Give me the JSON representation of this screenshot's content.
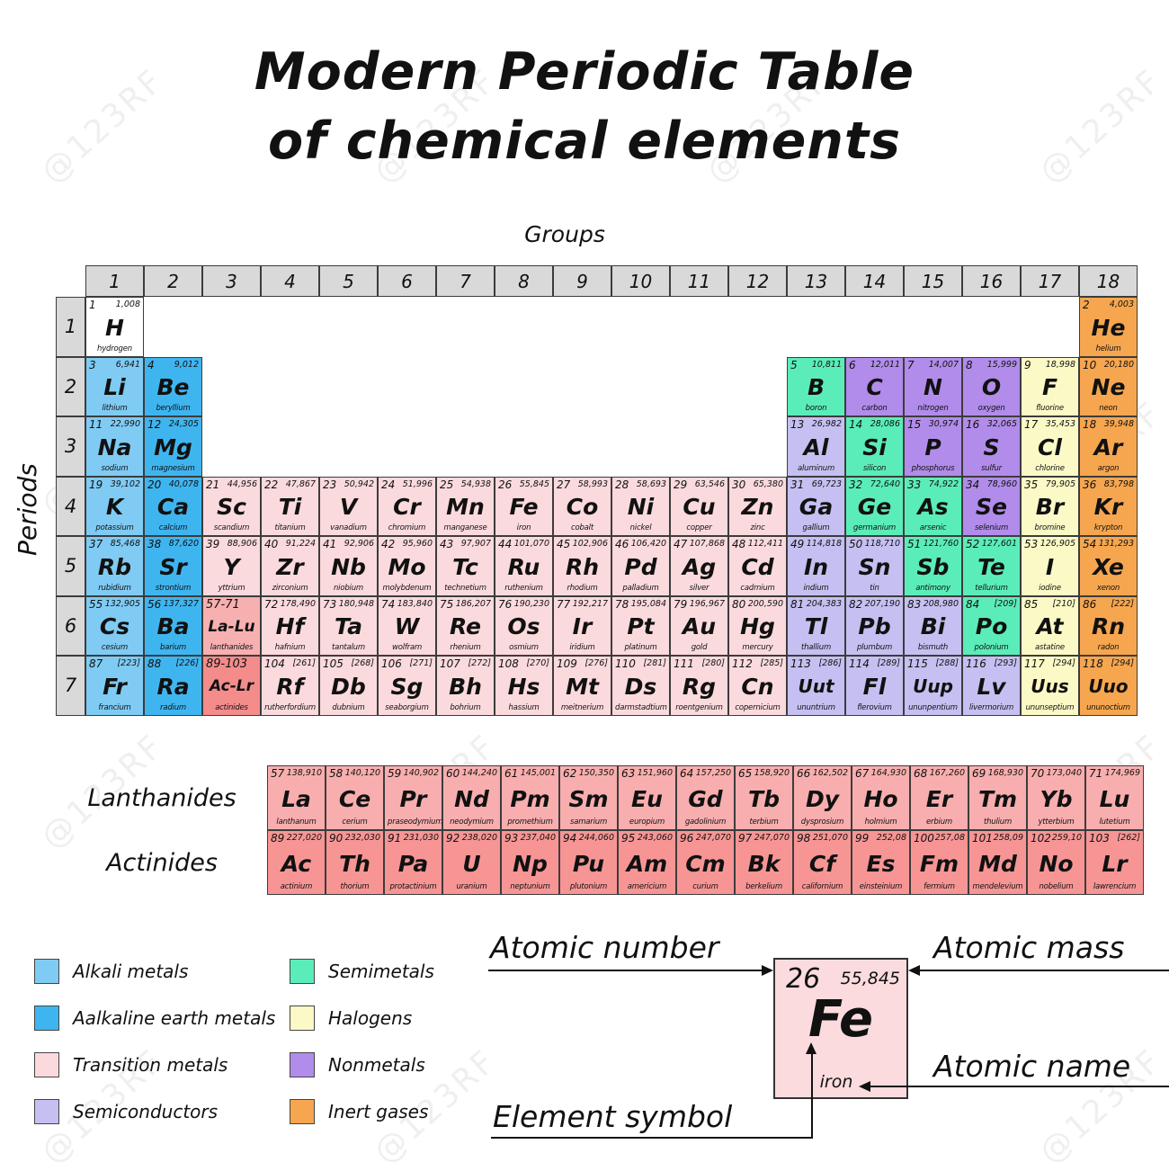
{
  "title": {
    "line1": "Modern Periodic Table",
    "line2": "of chemical elements"
  },
  "axis": {
    "groups_label": "Groups",
    "periods_label": "Periods"
  },
  "group_numbers": [
    "1",
    "2",
    "3",
    "4",
    "5",
    "6",
    "7",
    "8",
    "9",
    "10",
    "11",
    "12",
    "13",
    "14",
    "15",
    "16",
    "17",
    "18"
  ],
  "period_numbers": [
    "1",
    "2",
    "3",
    "4",
    "5",
    "6",
    "7"
  ],
  "colors": {
    "none": "#FFFFFF",
    "alkali": "#7FCBF4",
    "alkaline": "#3FB5F0",
    "transition": "#FBDADD",
    "semiconductor": "#C5C0F1",
    "semimetal": "#5BEDB9",
    "halogen": "#FBFAC6",
    "nonmetal": "#B18CEA",
    "inert": "#F6A64F",
    "lanthanide": "#F8AEAE",
    "actinide": "#F79595",
    "lanthanide_block": "#F7B0B0",
    "actinide_block": "#F48C8C",
    "header": "#D9D9D9"
  },
  "elements": [
    {
      "n": "1",
      "m": "1,008",
      "s": "H",
      "nm": "hydrogen",
      "c": "none",
      "p": 1,
      "g": 1
    },
    {
      "n": "2",
      "m": "4,003",
      "s": "He",
      "nm": "helium",
      "c": "inert",
      "p": 1,
      "g": 18
    },
    {
      "n": "3",
      "m": "6,941",
      "s": "Li",
      "nm": "lithium",
      "c": "alkali",
      "p": 2,
      "g": 1
    },
    {
      "n": "4",
      "m": "9,012",
      "s": "Be",
      "nm": "beryllium",
      "c": "alkaline",
      "p": 2,
      "g": 2
    },
    {
      "n": "5",
      "m": "10,811",
      "s": "B",
      "nm": "boron",
      "c": "semimetal",
      "p": 2,
      "g": 13
    },
    {
      "n": "6",
      "m": "12,011",
      "s": "C",
      "nm": "carbon",
      "c": "nonmetal",
      "p": 2,
      "g": 14
    },
    {
      "n": "7",
      "m": "14,007",
      "s": "N",
      "nm": "nitrogen",
      "c": "nonmetal",
      "p": 2,
      "g": 15
    },
    {
      "n": "8",
      "m": "15,999",
      "s": "O",
      "nm": "oxygen",
      "c": "nonmetal",
      "p": 2,
      "g": 16
    },
    {
      "n": "9",
      "m": "18,998",
      "s": "F",
      "nm": "fluorine",
      "c": "halogen",
      "p": 2,
      "g": 17
    },
    {
      "n": "10",
      "m": "20,180",
      "s": "Ne",
      "nm": "neon",
      "c": "inert",
      "p": 2,
      "g": 18
    },
    {
      "n": "11",
      "m": "22,990",
      "s": "Na",
      "nm": "sodium",
      "c": "alkali",
      "p": 3,
      "g": 1
    },
    {
      "n": "12",
      "m": "24,305",
      "s": "Mg",
      "nm": "magnesium",
      "c": "alkaline",
      "p": 3,
      "g": 2
    },
    {
      "n": "13",
      "m": "26,982",
      "s": "Al",
      "nm": "aluminum",
      "c": "semiconductor",
      "p": 3,
      "g": 13
    },
    {
      "n": "14",
      "m": "28,086",
      "s": "Si",
      "nm": "silicon",
      "c": "semimetal",
      "p": 3,
      "g": 14
    },
    {
      "n": "15",
      "m": "30,974",
      "s": "P",
      "nm": "phosphorus",
      "c": "nonmetal",
      "p": 3,
      "g": 15
    },
    {
      "n": "16",
      "m": "32,065",
      "s": "S",
      "nm": "sulfur",
      "c": "nonmetal",
      "p": 3,
      "g": 16
    },
    {
      "n": "17",
      "m": "35,453",
      "s": "Cl",
      "nm": "chlorine",
      "c": "halogen",
      "p": 3,
      "g": 17
    },
    {
      "n": "18",
      "m": "39,948",
      "s": "Ar",
      "nm": "argon",
      "c": "inert",
      "p": 3,
      "g": 18
    },
    {
      "n": "19",
      "m": "39,102",
      "s": "K",
      "nm": "potassium",
      "c": "alkali",
      "p": 4,
      "g": 1
    },
    {
      "n": "20",
      "m": "40,078",
      "s": "Ca",
      "nm": "calcium",
      "c": "alkaline",
      "p": 4,
      "g": 2
    },
    {
      "n": "21",
      "m": "44,956",
      "s": "Sc",
      "nm": "scandium",
      "c": "transition",
      "p": 4,
      "g": 3
    },
    {
      "n": "22",
      "m": "47,867",
      "s": "Ti",
      "nm": "titanium",
      "c": "transition",
      "p": 4,
      "g": 4
    },
    {
      "n": "23",
      "m": "50,942",
      "s": "V",
      "nm": "vanadium",
      "c": "transition",
      "p": 4,
      "g": 5
    },
    {
      "n": "24",
      "m": "51,996",
      "s": "Cr",
      "nm": "chromium",
      "c": "transition",
      "p": 4,
      "g": 6
    },
    {
      "n": "25",
      "m": "54,938",
      "s": "Mn",
      "nm": "manganese",
      "c": "transition",
      "p": 4,
      "g": 7
    },
    {
      "n": "26",
      "m": "55,845",
      "s": "Fe",
      "nm": "iron",
      "c": "transition",
      "p": 4,
      "g": 8
    },
    {
      "n": "27",
      "m": "58,993",
      "s": "Co",
      "nm": "cobalt",
      "c": "transition",
      "p": 4,
      "g": 9
    },
    {
      "n": "28",
      "m": "58,693",
      "s": "Ni",
      "nm": "nickel",
      "c": "transition",
      "p": 4,
      "g": 10
    },
    {
      "n": "29",
      "m": "63,546",
      "s": "Cu",
      "nm": "copper",
      "c": "transition",
      "p": 4,
      "g": 11
    },
    {
      "n": "30",
      "m": "65,380",
      "s": "Zn",
      "nm": "zinc",
      "c": "transition",
      "p": 4,
      "g": 12
    },
    {
      "n": "31",
      "m": "69,723",
      "s": "Ga",
      "nm": "gallium",
      "c": "semiconductor",
      "p": 4,
      "g": 13
    },
    {
      "n": "32",
      "m": "72,640",
      "s": "Ge",
      "nm": "germanium",
      "c": "semimetal",
      "p": 4,
      "g": 14
    },
    {
      "n": "33",
      "m": "74,922",
      "s": "As",
      "nm": "arsenic",
      "c": "semimetal",
      "p": 4,
      "g": 15
    },
    {
      "n": "34",
      "m": "78,960",
      "s": "Se",
      "nm": "selenium",
      "c": "nonmetal",
      "p": 4,
      "g": 16
    },
    {
      "n": "35",
      "m": "79,905",
      "s": "Br",
      "nm": "bromine",
      "c": "halogen",
      "p": 4,
      "g": 17
    },
    {
      "n": "36",
      "m": "83,798",
      "s": "Kr",
      "nm": "krypton",
      "c": "inert",
      "p": 4,
      "g": 18
    },
    {
      "n": "37",
      "m": "85,468",
      "s": "Rb",
      "nm": "rubidium",
      "c": "alkali",
      "p": 5,
      "g": 1
    },
    {
      "n": "38",
      "m": "87,620",
      "s": "Sr",
      "nm": "strontium",
      "c": "alkaline",
      "p": 5,
      "g": 2
    },
    {
      "n": "39",
      "m": "88,906",
      "s": "Y",
      "nm": "yttrium",
      "c": "transition",
      "p": 5,
      "g": 3
    },
    {
      "n": "40",
      "m": "91,224",
      "s": "Zr",
      "nm": "zirconium",
      "c": "transition",
      "p": 5,
      "g": 4
    },
    {
      "n": "41",
      "m": "92,906",
      "s": "Nb",
      "nm": "niobium",
      "c": "transition",
      "p": 5,
      "g": 5
    },
    {
      "n": "42",
      "m": "95,960",
      "s": "Mo",
      "nm": "molybdenum",
      "c": "transition",
      "p": 5,
      "g": 6
    },
    {
      "n": "43",
      "m": "97,907",
      "s": "Tc",
      "nm": "technetium",
      "c": "transition",
      "p": 5,
      "g": 7
    },
    {
      "n": "44",
      "m": "101,070",
      "s": "Ru",
      "nm": "ruthenium",
      "c": "transition",
      "p": 5,
      "g": 8
    },
    {
      "n": "45",
      "m": "102,906",
      "s": "Rh",
      "nm": "rhodium",
      "c": "transition",
      "p": 5,
      "g": 9
    },
    {
      "n": "46",
      "m": "106,420",
      "s": "Pd",
      "nm": "palladium",
      "c": "transition",
      "p": 5,
      "g": 10
    },
    {
      "n": "47",
      "m": "107,868",
      "s": "Ag",
      "nm": "silver",
      "c": "transition",
      "p": 5,
      "g": 11
    },
    {
      "n": "48",
      "m": "112,411",
      "s": "Cd",
      "nm": "cadmium",
      "c": "transition",
      "p": 5,
      "g": 12
    },
    {
      "n": "49",
      "m": "114,818",
      "s": "In",
      "nm": "indium",
      "c": "semiconductor",
      "p": 5,
      "g": 13
    },
    {
      "n": "50",
      "m": "118,710",
      "s": "Sn",
      "nm": "tin",
      "c": "semiconductor",
      "p": 5,
      "g": 14
    },
    {
      "n": "51",
      "m": "121,760",
      "s": "Sb",
      "nm": "antimony",
      "c": "semimetal",
      "p": 5,
      "g": 15
    },
    {
      "n": "52",
      "m": "127,601",
      "s": "Te",
      "nm": "tellurium",
      "c": "semimetal",
      "p": 5,
      "g": 16
    },
    {
      "n": "53",
      "m": "126,905",
      "s": "I",
      "nm": "iodine",
      "c": "halogen",
      "p": 5,
      "g": 17
    },
    {
      "n": "54",
      "m": "131,293",
      "s": "Xe",
      "nm": "xenon",
      "c": "inert",
      "p": 5,
      "g": 18
    },
    {
      "n": "55",
      "m": "132,905",
      "s": "Cs",
      "nm": "cesium",
      "c": "alkali",
      "p": 6,
      "g": 1
    },
    {
      "n": "56",
      "m": "137,327",
      "s": "Ba",
      "nm": "barium",
      "c": "alkaline",
      "p": 6,
      "g": 2
    },
    {
      "n": "57-71",
      "m": "",
      "s": "La-Lu",
      "nm": "lanthanides",
      "c": "lanthanide_block",
      "p": 6,
      "g": 3
    },
    {
      "n": "72",
      "m": "178,490",
      "s": "Hf",
      "nm": "hafnium",
      "c": "transition",
      "p": 6,
      "g": 4
    },
    {
      "n": "73",
      "m": "180,948",
      "s": "Ta",
      "nm": "tantalum",
      "c": "transition",
      "p": 6,
      "g": 5
    },
    {
      "n": "74",
      "m": "183,840",
      "s": "W",
      "nm": "wolfram",
      "c": "transition",
      "p": 6,
      "g": 6
    },
    {
      "n": "75",
      "m": "186,207",
      "s": "Re",
      "nm": "rhenium",
      "c": "transition",
      "p": 6,
      "g": 7
    },
    {
      "n": "76",
      "m": "190,230",
      "s": "Os",
      "nm": "osmium",
      "c": "transition",
      "p": 6,
      "g": 8
    },
    {
      "n": "77",
      "m": "192,217",
      "s": "Ir",
      "nm": "iridium",
      "c": "transition",
      "p": 6,
      "g": 9
    },
    {
      "n": "78",
      "m": "195,084",
      "s": "Pt",
      "nm": "platinum",
      "c": "transition",
      "p": 6,
      "g": 10
    },
    {
      "n": "79",
      "m": "196,967",
      "s": "Au",
      "nm": "gold",
      "c": "transition",
      "p": 6,
      "g": 11
    },
    {
      "n": "80",
      "m": "200,590",
      "s": "Hg",
      "nm": "mercury",
      "c": "transition",
      "p": 6,
      "g": 12
    },
    {
      "n": "81",
      "m": "204,383",
      "s": "Tl",
      "nm": "thallium",
      "c": "semiconductor",
      "p": 6,
      "g": 13
    },
    {
      "n": "82",
      "m": "207,190",
      "s": "Pb",
      "nm": "plumbum",
      "c": "semiconductor",
      "p": 6,
      "g": 14
    },
    {
      "n": "83",
      "m": "208,980",
      "s": "Bi",
      "nm": "bismuth",
      "c": "semiconductor",
      "p": 6,
      "g": 15
    },
    {
      "n": "84",
      "m": "[209]",
      "s": "Po",
      "nm": "polonium",
      "c": "semimetal",
      "p": 6,
      "g": 16
    },
    {
      "n": "85",
      "m": "[210]",
      "s": "At",
      "nm": "astatine",
      "c": "halogen",
      "p": 6,
      "g": 17
    },
    {
      "n": "86",
      "m": "[222]",
      "s": "Rn",
      "nm": "radon",
      "c": "inert",
      "p": 6,
      "g": 18
    },
    {
      "n": "87",
      "m": "[223]",
      "s": "Fr",
      "nm": "francium",
      "c": "alkali",
      "p": 7,
      "g": 1
    },
    {
      "n": "88",
      "m": "[226]",
      "s": "Ra",
      "nm": "radium",
      "c": "alkaline",
      "p": 7,
      "g": 2
    },
    {
      "n": "89-103",
      "m": "",
      "s": "Ac-Lr",
      "nm": "actinides",
      "c": "actinide_block",
      "p": 7,
      "g": 3
    },
    {
      "n": "104",
      "m": "[261]",
      "s": "Rf",
      "nm": "rutherfordium",
      "c": "transition",
      "p": 7,
      "g": 4
    },
    {
      "n": "105",
      "m": "[268]",
      "s": "Db",
      "nm": "dubnium",
      "c": "transition",
      "p": 7,
      "g": 5
    },
    {
      "n": "106",
      "m": "[271]",
      "s": "Sg",
      "nm": "seaborgium",
      "c": "transition",
      "p": 7,
      "g": 6
    },
    {
      "n": "107",
      "m": "[272]",
      "s": "Bh",
      "nm": "bohrium",
      "c": "transition",
      "p": 7,
      "g": 7
    },
    {
      "n": "108",
      "m": "[270]",
      "s": "Hs",
      "nm": "hassium",
      "c": "transition",
      "p": 7,
      "g": 8
    },
    {
      "n": "109",
      "m": "[276]",
      "s": "Mt",
      "nm": "meitnerium",
      "c": "transition",
      "p": 7,
      "g": 9
    },
    {
      "n": "110",
      "m": "[281]",
      "s": "Ds",
      "nm": "darmstadtium",
      "c": "transition",
      "p": 7,
      "g": 10
    },
    {
      "n": "111",
      "m": "[280]",
      "s": "Rg",
      "nm": "roentgenium",
      "c": "transition",
      "p": 7,
      "g": 11
    },
    {
      "n": "112",
      "m": "[285]",
      "s": "Cn",
      "nm": "copernicium",
      "c": "transition",
      "p": 7,
      "g": 12
    },
    {
      "n": "113",
      "m": "[286]",
      "s": "Uut",
      "nm": "ununtrium",
      "c": "semiconductor",
      "p": 7,
      "g": 13
    },
    {
      "n": "114",
      "m": "[289]",
      "s": "Fl",
      "nm": "flerovium",
      "c": "semiconductor",
      "p": 7,
      "g": 14
    },
    {
      "n": "115",
      "m": "[288]",
      "s": "Uup",
      "nm": "ununpentium",
      "c": "semiconductor",
      "p": 7,
      "g": 15
    },
    {
      "n": "116",
      "m": "[293]",
      "s": "Lv",
      "nm": "livermorium",
      "c": "semiconductor",
      "p": 7,
      "g": 16
    },
    {
      "n": "117",
      "m": "[294]",
      "s": "Uus",
      "nm": "ununseptium",
      "c": "halogen",
      "p": 7,
      "g": 17
    },
    {
      "n": "118",
      "m": "[294]",
      "s": "Uuo",
      "nm": "ununoctium",
      "c": "inert",
      "p": 7,
      "g": 18
    }
  ],
  "wide_rows": {
    "lanthanides": {
      "label": "Lanthanides",
      "items": [
        {
          "n": "57",
          "m": "138,910",
          "s": "La",
          "nm": "lanthanum",
          "c": "lanthanide"
        },
        {
          "n": "58",
          "m": "140,120",
          "s": "Ce",
          "nm": "cerium",
          "c": "lanthanide"
        },
        {
          "n": "59",
          "m": "140,902",
          "s": "Pr",
          "nm": "praseodymium",
          "c": "lanthanide"
        },
        {
          "n": "60",
          "m": "144,240",
          "s": "Nd",
          "nm": "neodymium",
          "c": "lanthanide"
        },
        {
          "n": "61",
          "m": "145,001",
          "s": "Pm",
          "nm": "promethium",
          "c": "lanthanide"
        },
        {
          "n": "62",
          "m": "150,350",
          "s": "Sm",
          "nm": "samarium",
          "c": "lanthanide"
        },
        {
          "n": "63",
          "m": "151,960",
          "s": "Eu",
          "nm": "europium",
          "c": "lanthanide"
        },
        {
          "n": "64",
          "m": "157,250",
          "s": "Gd",
          "nm": "gadolinium",
          "c": "lanthanide"
        },
        {
          "n": "65",
          "m": "158,920",
          "s": "Tb",
          "nm": "terbium",
          "c": "lanthanide"
        },
        {
          "n": "66",
          "m": "162,502",
          "s": "Dy",
          "nm": "dysprosium",
          "c": "lanthanide"
        },
        {
          "n": "67",
          "m": "164,930",
          "s": "Ho",
          "nm": "holmium",
          "c": "lanthanide"
        },
        {
          "n": "68",
          "m": "167,260",
          "s": "Er",
          "nm": "erbium",
          "c": "lanthanide"
        },
        {
          "n": "69",
          "m": "168,930",
          "s": "Tm",
          "nm": "thulium",
          "c": "lanthanide"
        },
        {
          "n": "70",
          "m": "173,040",
          "s": "Yb",
          "nm": "ytterbium",
          "c": "lanthanide"
        },
        {
          "n": "71",
          "m": "174,969",
          "s": "Lu",
          "nm": "lutetium",
          "c": "lanthanide"
        }
      ]
    },
    "actinides": {
      "label": "Actinides",
      "items": [
        {
          "n": "89",
          "m": "227,020",
          "s": "Ac",
          "nm": "actinium",
          "c": "actinide"
        },
        {
          "n": "90",
          "m": "232,030",
          "s": "Th",
          "nm": "thorium",
          "c": "actinide"
        },
        {
          "n": "91",
          "m": "231,030",
          "s": "Pa",
          "nm": "protactinium",
          "c": "actinide"
        },
        {
          "n": "92",
          "m": "238,020",
          "s": "U",
          "nm": "uranium",
          "c": "actinide"
        },
        {
          "n": "93",
          "m": "237,040",
          "s": "Np",
          "nm": "neptunium",
          "c": "actinide"
        },
        {
          "n": "94",
          "m": "244,060",
          "s": "Pu",
          "nm": "plutonium",
          "c": "actinide"
        },
        {
          "n": "95",
          "m": "243,060",
          "s": "Am",
          "nm": "americium",
          "c": "actinide"
        },
        {
          "n": "96",
          "m": "247,070",
          "s": "Cm",
          "nm": "curium",
          "c": "actinide"
        },
        {
          "n": "97",
          "m": "247,070",
          "s": "Bk",
          "nm": "berkelium",
          "c": "actinide"
        },
        {
          "n": "98",
          "m": "251,070",
          "s": "Cf",
          "nm": "californium",
          "c": "actinide"
        },
        {
          "n": "99",
          "m": "252,08",
          "s": "Es",
          "nm": "einsteinium",
          "c": "actinide"
        },
        {
          "n": "100",
          "m": "257,08",
          "s": "Fm",
          "nm": "fermium",
          "c": "actinide"
        },
        {
          "n": "101",
          "m": "258,09",
          "s": "Md",
          "nm": "mendelevium",
          "c": "actinide"
        },
        {
          "n": "102",
          "m": "259,10",
          "s": "No",
          "nm": "nobelium",
          "c": "actinide"
        },
        {
          "n": "103",
          "m": "[262]",
          "s": "Lr",
          "nm": "lawrencium",
          "c": "actinide"
        }
      ]
    }
  },
  "legend": {
    "items": [
      {
        "label": "Alkali metals",
        "cat": "alkali"
      },
      {
        "label": "Aalkaline earth metals",
        "cat": "alkaline"
      },
      {
        "label": "Transition metals",
        "cat": "transition"
      },
      {
        "label": "Semiconductors",
        "cat": "semiconductor"
      },
      {
        "label": "Semimetals",
        "cat": "semimetal"
      },
      {
        "label": "Halogens",
        "cat": "halogen"
      },
      {
        "label": "Nonmetals",
        "cat": "nonmetal"
      },
      {
        "label": "Inert gases",
        "cat": "inert"
      }
    ]
  },
  "example": {
    "number": "26",
    "mass": "55,845",
    "symbol": "Fe",
    "name": "iron",
    "category": "transition"
  },
  "annotations": {
    "atomic_number": "Atomic number",
    "atomic_mass": "Atomic mass",
    "atomic_name": "Atomic name",
    "element_symbol": "Element symbol"
  },
  "watermark": {
    "text": "@123RF"
  }
}
